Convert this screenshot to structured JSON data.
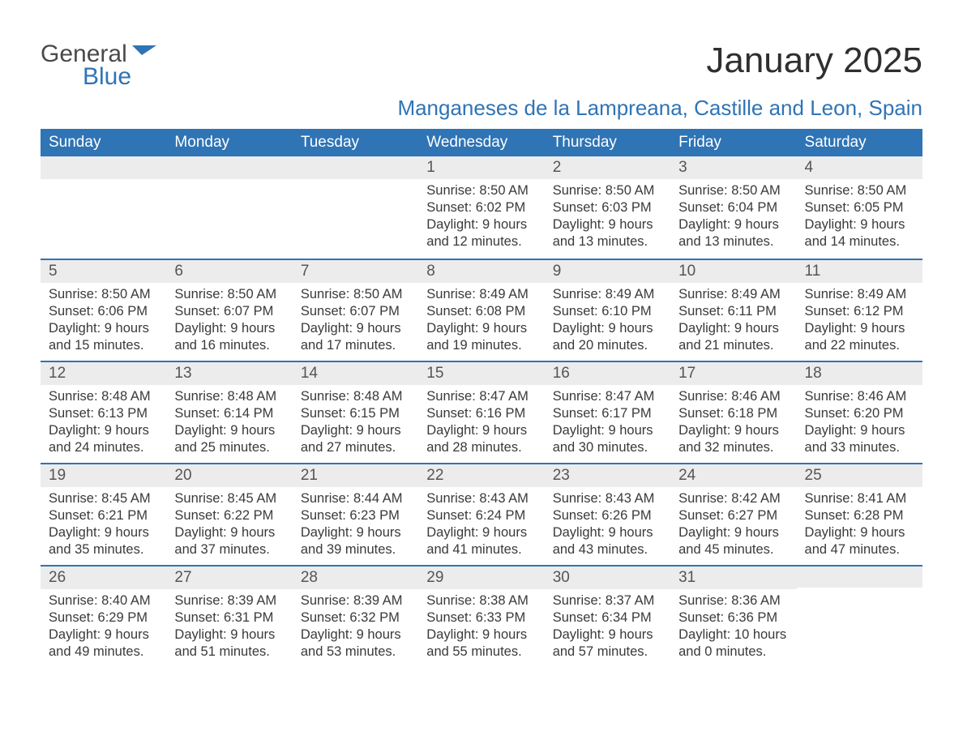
{
  "logo": {
    "general": "General",
    "blue": "Blue",
    "flag_color": "#2f74b5"
  },
  "header": {
    "month_title": "January 2025",
    "location": "Manganeses de la Lampreana, Castille and Leon, Spain"
  },
  "colors": {
    "header_bg": "#2f74b5",
    "header_text": "#ffffff",
    "daynum_bg": "#ececec",
    "row_border": "#2f74b5",
    "body_text": "#3a3a3a",
    "page_bg": "#ffffff"
  },
  "weekdays": [
    "Sunday",
    "Monday",
    "Tuesday",
    "Wednesday",
    "Thursday",
    "Friday",
    "Saturday"
  ],
  "weeks": [
    [
      null,
      null,
      null,
      {
        "num": "1",
        "sunrise": "Sunrise: 8:50 AM",
        "sunset": "Sunset: 6:02 PM",
        "day1": "Daylight: 9 hours",
        "day2": "and 12 minutes."
      },
      {
        "num": "2",
        "sunrise": "Sunrise: 8:50 AM",
        "sunset": "Sunset: 6:03 PM",
        "day1": "Daylight: 9 hours",
        "day2": "and 13 minutes."
      },
      {
        "num": "3",
        "sunrise": "Sunrise: 8:50 AM",
        "sunset": "Sunset: 6:04 PM",
        "day1": "Daylight: 9 hours",
        "day2": "and 13 minutes."
      },
      {
        "num": "4",
        "sunrise": "Sunrise: 8:50 AM",
        "sunset": "Sunset: 6:05 PM",
        "day1": "Daylight: 9 hours",
        "day2": "and 14 minutes."
      }
    ],
    [
      {
        "num": "5",
        "sunrise": "Sunrise: 8:50 AM",
        "sunset": "Sunset: 6:06 PM",
        "day1": "Daylight: 9 hours",
        "day2": "and 15 minutes."
      },
      {
        "num": "6",
        "sunrise": "Sunrise: 8:50 AM",
        "sunset": "Sunset: 6:07 PM",
        "day1": "Daylight: 9 hours",
        "day2": "and 16 minutes."
      },
      {
        "num": "7",
        "sunrise": "Sunrise: 8:50 AM",
        "sunset": "Sunset: 6:07 PM",
        "day1": "Daylight: 9 hours",
        "day2": "and 17 minutes."
      },
      {
        "num": "8",
        "sunrise": "Sunrise: 8:49 AM",
        "sunset": "Sunset: 6:08 PM",
        "day1": "Daylight: 9 hours",
        "day2": "and 19 minutes."
      },
      {
        "num": "9",
        "sunrise": "Sunrise: 8:49 AM",
        "sunset": "Sunset: 6:10 PM",
        "day1": "Daylight: 9 hours",
        "day2": "and 20 minutes."
      },
      {
        "num": "10",
        "sunrise": "Sunrise: 8:49 AM",
        "sunset": "Sunset: 6:11 PM",
        "day1": "Daylight: 9 hours",
        "day2": "and 21 minutes."
      },
      {
        "num": "11",
        "sunrise": "Sunrise: 8:49 AM",
        "sunset": "Sunset: 6:12 PM",
        "day1": "Daylight: 9 hours",
        "day2": "and 22 minutes."
      }
    ],
    [
      {
        "num": "12",
        "sunrise": "Sunrise: 8:48 AM",
        "sunset": "Sunset: 6:13 PM",
        "day1": "Daylight: 9 hours",
        "day2": "and 24 minutes."
      },
      {
        "num": "13",
        "sunrise": "Sunrise: 8:48 AM",
        "sunset": "Sunset: 6:14 PM",
        "day1": "Daylight: 9 hours",
        "day2": "and 25 minutes."
      },
      {
        "num": "14",
        "sunrise": "Sunrise: 8:48 AM",
        "sunset": "Sunset: 6:15 PM",
        "day1": "Daylight: 9 hours",
        "day2": "and 27 minutes."
      },
      {
        "num": "15",
        "sunrise": "Sunrise: 8:47 AM",
        "sunset": "Sunset: 6:16 PM",
        "day1": "Daylight: 9 hours",
        "day2": "and 28 minutes."
      },
      {
        "num": "16",
        "sunrise": "Sunrise: 8:47 AM",
        "sunset": "Sunset: 6:17 PM",
        "day1": "Daylight: 9 hours",
        "day2": "and 30 minutes."
      },
      {
        "num": "17",
        "sunrise": "Sunrise: 8:46 AM",
        "sunset": "Sunset: 6:18 PM",
        "day1": "Daylight: 9 hours",
        "day2": "and 32 minutes."
      },
      {
        "num": "18",
        "sunrise": "Sunrise: 8:46 AM",
        "sunset": "Sunset: 6:20 PM",
        "day1": "Daylight: 9 hours",
        "day2": "and 33 minutes."
      }
    ],
    [
      {
        "num": "19",
        "sunrise": "Sunrise: 8:45 AM",
        "sunset": "Sunset: 6:21 PM",
        "day1": "Daylight: 9 hours",
        "day2": "and 35 minutes."
      },
      {
        "num": "20",
        "sunrise": "Sunrise: 8:45 AM",
        "sunset": "Sunset: 6:22 PM",
        "day1": "Daylight: 9 hours",
        "day2": "and 37 minutes."
      },
      {
        "num": "21",
        "sunrise": "Sunrise: 8:44 AM",
        "sunset": "Sunset: 6:23 PM",
        "day1": "Daylight: 9 hours",
        "day2": "and 39 minutes."
      },
      {
        "num": "22",
        "sunrise": "Sunrise: 8:43 AM",
        "sunset": "Sunset: 6:24 PM",
        "day1": "Daylight: 9 hours",
        "day2": "and 41 minutes."
      },
      {
        "num": "23",
        "sunrise": "Sunrise: 8:43 AM",
        "sunset": "Sunset: 6:26 PM",
        "day1": "Daylight: 9 hours",
        "day2": "and 43 minutes."
      },
      {
        "num": "24",
        "sunrise": "Sunrise: 8:42 AM",
        "sunset": "Sunset: 6:27 PM",
        "day1": "Daylight: 9 hours",
        "day2": "and 45 minutes."
      },
      {
        "num": "25",
        "sunrise": "Sunrise: 8:41 AM",
        "sunset": "Sunset: 6:28 PM",
        "day1": "Daylight: 9 hours",
        "day2": "and 47 minutes."
      }
    ],
    [
      {
        "num": "26",
        "sunrise": "Sunrise: 8:40 AM",
        "sunset": "Sunset: 6:29 PM",
        "day1": "Daylight: 9 hours",
        "day2": "and 49 minutes."
      },
      {
        "num": "27",
        "sunrise": "Sunrise: 8:39 AM",
        "sunset": "Sunset: 6:31 PM",
        "day1": "Daylight: 9 hours",
        "day2": "and 51 minutes."
      },
      {
        "num": "28",
        "sunrise": "Sunrise: 8:39 AM",
        "sunset": "Sunset: 6:32 PM",
        "day1": "Daylight: 9 hours",
        "day2": "and 53 minutes."
      },
      {
        "num": "29",
        "sunrise": "Sunrise: 8:38 AM",
        "sunset": "Sunset: 6:33 PM",
        "day1": "Daylight: 9 hours",
        "day2": "and 55 minutes."
      },
      {
        "num": "30",
        "sunrise": "Sunrise: 8:37 AM",
        "sunset": "Sunset: 6:34 PM",
        "day1": "Daylight: 9 hours",
        "day2": "and 57 minutes."
      },
      {
        "num": "31",
        "sunrise": "Sunrise: 8:36 AM",
        "sunset": "Sunset: 6:36 PM",
        "day1": "Daylight: 10 hours",
        "day2": "and 0 minutes."
      },
      null
    ]
  ]
}
